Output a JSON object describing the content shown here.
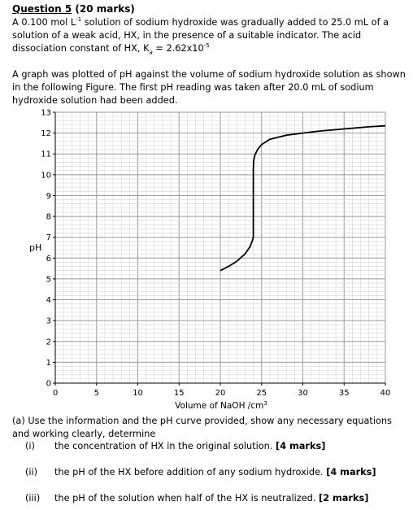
{
  "question": {
    "title_prefix": "Question 5",
    "title_suffix": " (20 marks)",
    "intro": [
      "A 0.100 mol L",
      "-1",
      " solution of sodium hydroxide was gradually added to 25.0 mL of a solution of a weak acid, HX, in the presence of a suitable indicator. The acid dissociation constant of HX, K",
      "a",
      " = 2.62x10",
      "-5"
    ],
    "graph_text": "A graph was plotted of pH against the volume of sodium hydroxide solution as shown in the following Figure. The first pH reading was taken after 20.0 mL of sodium hydroxide solution had been added."
  },
  "chart_data": {
    "type": "line",
    "title": "",
    "xlabel": "Volume of NaOH /cm",
    "xlabel_sup": "3",
    "ylabel": "pH",
    "xlim": [
      0,
      40
    ],
    "ylim": [
      0,
      13
    ],
    "x_ticks": [
      "0",
      "5",
      "10",
      "15",
      "20",
      "25",
      "30",
      "35",
      "40"
    ],
    "y_ticks": [
      "0",
      "1",
      "2",
      "3",
      "4",
      "5",
      "6",
      "7",
      "8",
      "9",
      "10",
      "11",
      "12",
      "13"
    ],
    "grid": true,
    "series": [
      {
        "color": "#000000",
        "x": [
          20.0,
          21.0,
          22.0,
          23.0,
          23.6,
          23.9,
          24.0,
          24.0,
          24.05,
          24.2,
          24.5,
          25.0,
          26.0,
          27.0,
          28.0,
          30.0,
          32.0,
          35.0,
          38.0,
          40.0
        ],
        "y": [
          5.4,
          5.6,
          5.85,
          6.2,
          6.55,
          6.85,
          7.0,
          10.3,
          10.7,
          10.95,
          11.2,
          11.45,
          11.7,
          11.8,
          11.9,
          12.0,
          12.1,
          12.2,
          12.3,
          12.35
        ]
      }
    ]
  },
  "parts": {
    "a_text": "(a) Use the information and the pH curve provided, show any necessary equations and working clearly, determine",
    "items": [
      {
        "num": "(i)",
        "text": "the concentration of HX in the original solution. ",
        "marks": "[4 marks]"
      },
      {
        "num": "(ii)",
        "text": "the pH of the HX before addition of any sodium hydroxide. ",
        "marks": "[4 marks]"
      },
      {
        "num": "(iii)",
        "text": "the pH of the solution when half of the HX is neutralized. ",
        "marks": "[2 marks]"
      }
    ]
  }
}
